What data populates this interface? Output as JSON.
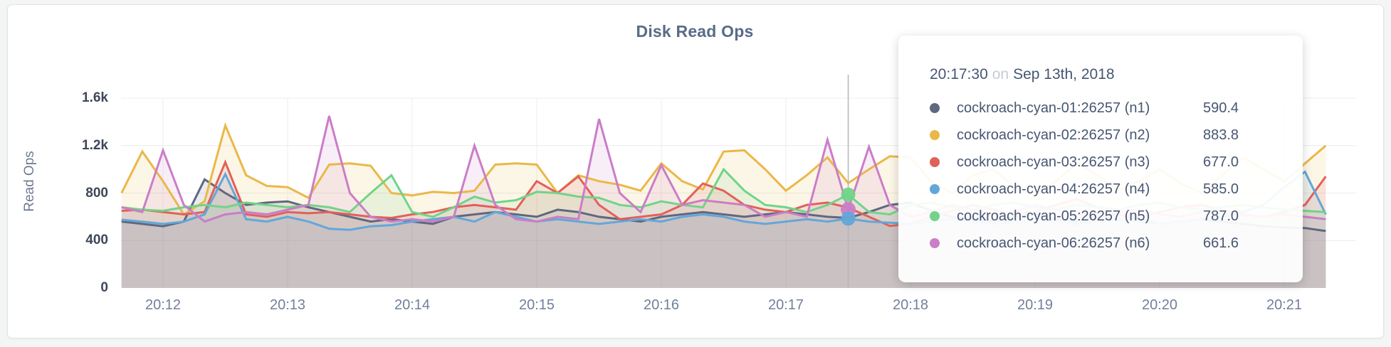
{
  "card": {
    "title": "Disk Read Ops"
  },
  "chart_data": {
    "type": "line",
    "title": "Disk Read Ops",
    "xlabel": "",
    "ylabel": "Read Ops",
    "ylim": [
      0,
      1600
    ],
    "grid": true,
    "legend_position": "hover-tooltip",
    "y_ticks": [
      {
        "value": 0,
        "label": "0"
      },
      {
        "value": 400,
        "label": "400"
      },
      {
        "value": 800,
        "label": "800"
      },
      {
        "value": 1200,
        "label": "1.2k"
      },
      {
        "value": 1600,
        "label": "1.6k"
      }
    ],
    "x_tick_labels": [
      "20:12",
      "20:13",
      "20:14",
      "20:15",
      "20:16",
      "20:17",
      "20:18",
      "20:19",
      "20:20",
      "20:21"
    ],
    "x_start": "20:11:40",
    "x_interval_seconds": 10,
    "point_count": 59,
    "series": [
      {
        "name": "cockroach-cyan-01:26257 (n1)",
        "short": "n1",
        "color": "#5f6880",
        "values": [
          560,
          540,
          520,
          560,
          915,
          800,
          700,
          720,
          730,
          680,
          640,
          600,
          560,
          580,
          560,
          540,
          600,
          620,
          640,
          620,
          600,
          660,
          640,
          600,
          580,
          560,
          600,
          620,
          640,
          620,
          600,
          620,
          640,
          620,
          600,
          590.4,
          640,
          700,
          720,
          650,
          600,
          580,
          560,
          600,
          620,
          580,
          560,
          600,
          620,
          580,
          540,
          560,
          580,
          560,
          540,
          520,
          510,
          505,
          480
        ]
      },
      {
        "name": "cockroach-cyan-02:26257 (n2)",
        "short": "n2",
        "color": "#eab849",
        "values": [
          800,
          1150,
          900,
          620,
          730,
          1370,
          950,
          860,
          850,
          760,
          1040,
          1050,
          1030,
          800,
          780,
          810,
          800,
          820,
          1040,
          1050,
          1040,
          800,
          950,
          900,
          870,
          820,
          1050,
          900,
          830,
          1150,
          1160,
          1000,
          820,
          950,
          1100,
          883.8,
          1000,
          1110,
          1100,
          900,
          800,
          950,
          1000,
          850,
          780,
          900,
          1050,
          950,
          820,
          900,
          1000,
          880,
          800,
          950,
          1100,
          1000,
          900,
          1050,
          1200
        ]
      },
      {
        "name": "cockroach-cyan-03:26257 (n3)",
        "short": "n3",
        "color": "#e2605a",
        "values": [
          650,
          660,
          640,
          620,
          640,
          1060,
          620,
          600,
          640,
          630,
          640,
          620,
          600,
          590,
          620,
          640,
          680,
          700,
          680,
          660,
          900,
          800,
          940,
          700,
          580,
          600,
          620,
          700,
          880,
          820,
          700,
          660,
          640,
          700,
          720,
          677,
          600,
          523,
          540,
          600,
          650,
          700,
          660,
          620,
          640,
          700,
          750,
          680,
          620,
          600,
          640,
          680,
          700,
          660,
          620,
          600,
          640,
          700,
          940
        ]
      },
      {
        "name": "cockroach-cyan-04:26257 (n4)",
        "short": "n4",
        "color": "#62a7da",
        "values": [
          575,
          560,
          540,
          560,
          620,
          960,
          580,
          560,
          600,
          560,
          500,
          490,
          520,
          530,
          560,
          580,
          600,
          560,
          640,
          600,
          560,
          580,
          560,
          540,
          560,
          580,
          560,
          600,
          620,
          600,
          560,
          540,
          560,
          580,
          560,
          585,
          560,
          550,
          540,
          560,
          580,
          560,
          540,
          560,
          580,
          560,
          540,
          560,
          580,
          560,
          540,
          560,
          580,
          600,
          640,
          700,
          850,
          980,
          620
        ]
      },
      {
        "name": "cockroach-cyan-05:26257 (n5)",
        "short": "n5",
        "color": "#72d389",
        "values": [
          680,
          660,
          650,
          680,
          700,
          680,
          720,
          700,
          680,
          700,
          680,
          640,
          800,
          950,
          640,
          600,
          680,
          770,
          720,
          740,
          810,
          800,
          770,
          760,
          700,
          680,
          730,
          700,
          680,
          1000,
          820,
          700,
          680,
          640,
          700,
          787,
          640,
          620,
          700,
          720,
          680,
          660,
          700,
          720,
          680,
          660,
          700,
          680,
          660,
          700,
          720,
          680,
          660,
          680,
          700,
          680,
          660,
          650,
          640
        ]
      },
      {
        "name": "cockroach-cyan-06:26257 (n6)",
        "short": "n6",
        "color": "#cb7dc7",
        "values": [
          680,
          640,
          1160,
          700,
          560,
          620,
          640,
          620,
          660,
          700,
          1450,
          800,
          600,
          560,
          580,
          560,
          600,
          1200,
          700,
          580,
          560,
          600,
          580,
          1425,
          800,
          640,
          1035,
          700,
          740,
          720,
          700,
          600,
          640,
          600,
          1250,
          661.6,
          1190,
          700,
          600,
          640,
          700,
          660,
          620,
          640,
          700,
          660,
          620,
          600,
          640,
          660,
          620,
          600,
          640,
          660,
          620,
          600,
          620,
          600,
          580
        ]
      }
    ],
    "hover": {
      "index": 35,
      "time": "20:17:30",
      "separator": "on",
      "date": "Sep 13th, 2018",
      "value_labels": [
        "590.4",
        "883.8",
        "677.0",
        "585.0",
        "787.0",
        "661.6"
      ],
      "dot_series": [
        "n5",
        "n6",
        "n4"
      ]
    },
    "style": {
      "grid_color": "#ececec",
      "crosshair_color": "#b6b6b6",
      "fill_opacity": 0.13,
      "line_width": 3
    }
  }
}
